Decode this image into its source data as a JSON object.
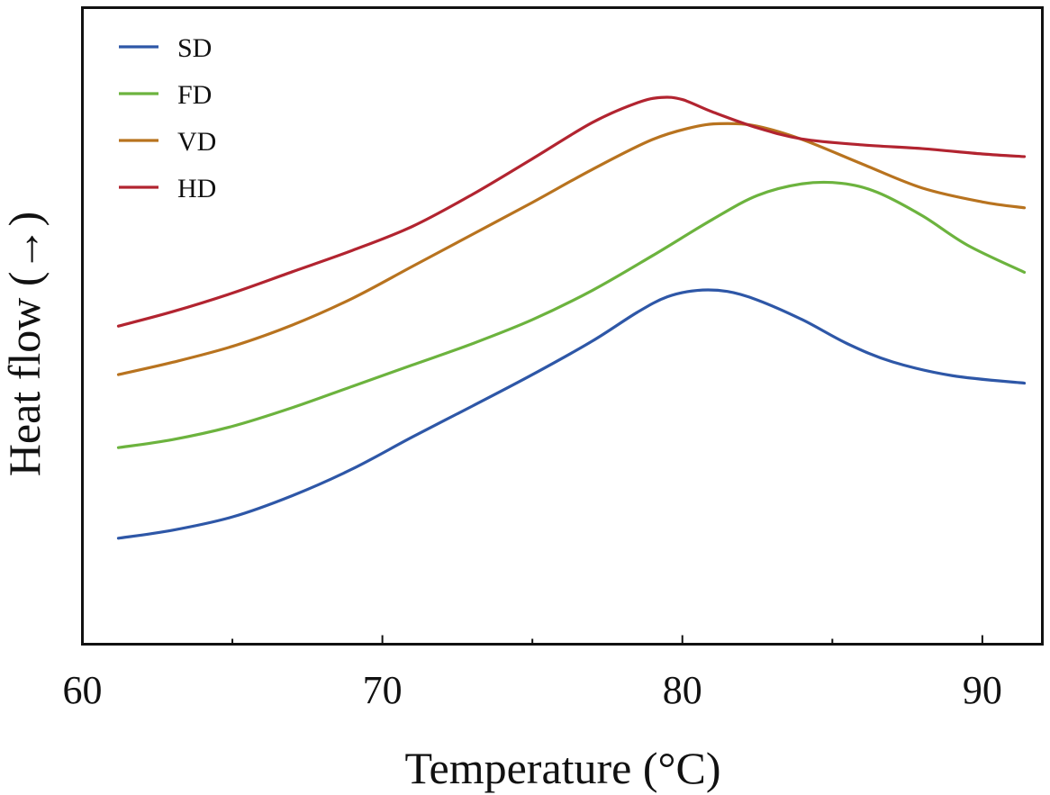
{
  "chart_data": {
    "type": "line",
    "title": "",
    "xlabel": "Temperature (°C)",
    "ylabel": "Heat flow (→)",
    "xlim": [
      60,
      92
    ],
    "ylim": [
      0,
      100
    ],
    "xticks": [
      60,
      70,
      80,
      90
    ],
    "xtick_labels": [
      "60",
      "70",
      "80",
      "90"
    ],
    "y_tick_labels_shown": false,
    "grid": false,
    "legend_position": "top-left",
    "series": [
      {
        "name": "SD",
        "color": "#2e57a7",
        "points": [
          [
            61.2,
            16.5
          ],
          [
            63,
            18
          ],
          [
            65,
            20.5
          ],
          [
            67,
            24.5
          ],
          [
            69,
            29.5
          ],
          [
            71,
            35.5
          ],
          [
            73,
            41.3
          ],
          [
            75,
            47.2
          ],
          [
            77,
            53.5
          ],
          [
            78.5,
            58.9
          ],
          [
            79.5,
            61.8
          ],
          [
            80.5,
            63
          ],
          [
            81.5,
            62.8
          ],
          [
            82.5,
            61.2
          ],
          [
            84,
            57.5
          ],
          [
            85.5,
            53
          ],
          [
            87,
            49.6
          ],
          [
            89,
            47
          ],
          [
            91.4,
            45.6
          ]
        ]
      },
      {
        "name": "FD",
        "color": "#6cb33e",
        "points": [
          [
            61.2,
            33.5
          ],
          [
            63,
            35
          ],
          [
            65,
            37.5
          ],
          [
            67,
            41
          ],
          [
            69,
            45
          ],
          [
            71,
            49
          ],
          [
            73,
            53
          ],
          [
            75,
            57.5
          ],
          [
            77,
            63
          ],
          [
            79,
            69.5
          ],
          [
            81,
            76.3
          ],
          [
            82.5,
            80.8
          ],
          [
            84,
            83
          ],
          [
            85.3,
            83.1
          ],
          [
            86.5,
            81.4
          ],
          [
            88,
            77
          ],
          [
            89.5,
            71.5
          ],
          [
            91.4,
            66.4
          ]
        ]
      },
      {
        "name": "VD",
        "color": "#b8731f",
        "points": [
          [
            61.2,
            47.2
          ],
          [
            63,
            49.5
          ],
          [
            65,
            52.5
          ],
          [
            67,
            56.5
          ],
          [
            69,
            61.5
          ],
          [
            71,
            67.5
          ],
          [
            73,
            73.5
          ],
          [
            75,
            79.5
          ],
          [
            77,
            85.7
          ],
          [
            79,
            91.3
          ],
          [
            80.5,
            93.8
          ],
          [
            81.5,
            94.3
          ],
          [
            82.5,
            93.8
          ],
          [
            84,
            91.3
          ],
          [
            86,
            86.7
          ],
          [
            88,
            82.2
          ],
          [
            90,
            79.6
          ],
          [
            91.4,
            78.5
          ]
        ]
      },
      {
        "name": "HD",
        "color": "#b22430",
        "points": [
          [
            61.2,
            56.3
          ],
          [
            63,
            59
          ],
          [
            65,
            62.5
          ],
          [
            67,
            66.5
          ],
          [
            69,
            70.5
          ],
          [
            71,
            75
          ],
          [
            73,
            81
          ],
          [
            75,
            87.7
          ],
          [
            77,
            94.5
          ],
          [
            78.5,
            98.2
          ],
          [
            79.3,
            99.2
          ],
          [
            80,
            98.8
          ],
          [
            81,
            96.5
          ],
          [
            82.5,
            93.5
          ],
          [
            84,
            91.4
          ],
          [
            86,
            90.3
          ],
          [
            88,
            89.6
          ],
          [
            90,
            88.6
          ],
          [
            91.4,
            88.1
          ]
        ]
      }
    ]
  }
}
